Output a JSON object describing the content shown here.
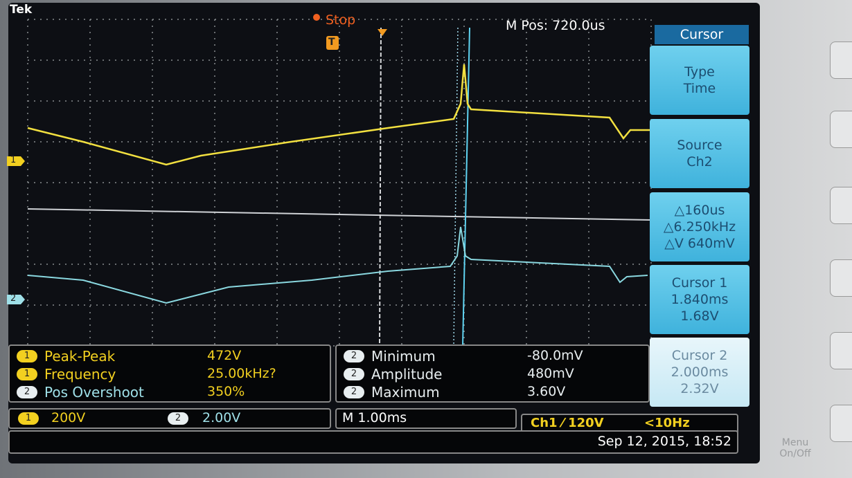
{
  "header": {
    "brand": "Tek",
    "status": "Stop",
    "trigger_marker": "T",
    "position": "M Pos: 720.0us"
  },
  "channel_markers": [
    "1",
    "2"
  ],
  "side_menu": {
    "title": "Cursor",
    "items": [
      [
        "Type",
        "Time"
      ],
      [
        "Source",
        "Ch2"
      ],
      [
        "△160us",
        "△6.250kHz",
        "△V 640mV"
      ],
      [
        "Cursor 1",
        "1.840ms",
        "1.68V"
      ],
      [
        "Cursor 2",
        "2.000ms",
        "2.32V"
      ]
    ]
  },
  "measurements": {
    "left": [
      {
        "channel": "1",
        "name": "Peak-Peak",
        "value": "472V"
      },
      {
        "channel": "1",
        "name": "Frequency",
        "value": "25.00kHz?"
      },
      {
        "channel": "2",
        "name": "Pos Overshoot",
        "value": "350%"
      }
    ],
    "right": [
      {
        "channel": "2",
        "name": "Minimum",
        "value": "-80.0mV"
      },
      {
        "channel": "2",
        "name": "Amplitude",
        "value": "480mV"
      },
      {
        "channel": "2",
        "name": "Maximum",
        "value": "3.60V"
      }
    ]
  },
  "status_bar": {
    "ch1_channel": "1",
    "ch1_scale": "200V",
    "ch2_channel": "2",
    "ch2_scale": "2.00V",
    "timebase": "M 1.00ms",
    "trigger": "Ch1 ⁄ 120V",
    "trigger_freq": "<10Hz",
    "datetime": "Sep 12, 2015, 18:52"
  },
  "bezel": {
    "button_label": "Menu On/Off"
  }
}
